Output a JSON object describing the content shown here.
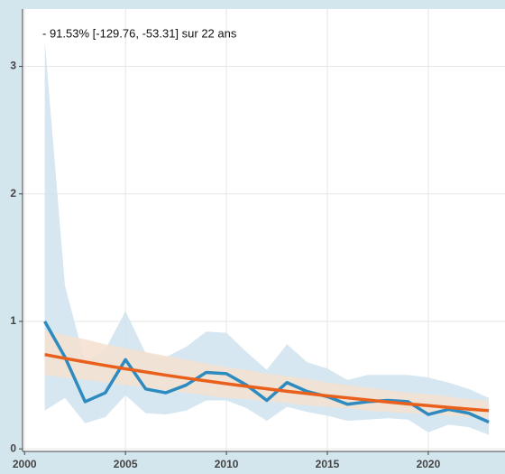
{
  "chart_data": {
    "type": "line",
    "annotation": "- 91.53% [-129.76, -53.31] sur 22 ans",
    "x": [
      2001,
      2002,
      2003,
      2004,
      2005,
      2006,
      2007,
      2008,
      2009,
      2010,
      2011,
      2012,
      2013,
      2014,
      2015,
      2016,
      2017,
      2018,
      2019,
      2020,
      2021,
      2022,
      2023
    ],
    "series": [
      {
        "color": "#2e8bc0",
        "band_color": "#cfe3ef",
        "values": [
          1.0,
          0.72,
          0.37,
          0.44,
          0.7,
          0.47,
          0.44,
          0.5,
          0.6,
          0.59,
          0.5,
          0.38,
          0.52,
          0.45,
          0.41,
          0.35,
          0.37,
          0.38,
          0.37,
          0.27,
          0.31,
          0.28,
          0.21
        ],
        "band_upper": [
          3.2,
          1.28,
          0.68,
          0.78,
          1.08,
          0.75,
          0.72,
          0.8,
          0.92,
          0.91,
          0.76,
          0.62,
          0.82,
          0.68,
          0.63,
          0.54,
          0.58,
          0.58,
          0.58,
          0.56,
          0.52,
          0.47,
          0.4
        ],
        "band_lower": [
          0.3,
          0.4,
          0.2,
          0.25,
          0.42,
          0.28,
          0.27,
          0.3,
          0.38,
          0.38,
          0.32,
          0.22,
          0.33,
          0.29,
          0.26,
          0.22,
          0.23,
          0.24,
          0.23,
          0.13,
          0.19,
          0.17,
          0.11
        ]
      },
      {
        "color": "#e8601c",
        "band_color": "#f5e0cf",
        "values": [
          0.74,
          0.71,
          0.682,
          0.654,
          0.628,
          0.603,
          0.578,
          0.555,
          0.533,
          0.511,
          0.491,
          0.471,
          0.452,
          0.434,
          0.416,
          0.4,
          0.384,
          0.368,
          0.353,
          0.339,
          0.325,
          0.312,
          0.3
        ],
        "band_upper": [
          0.93,
          0.89,
          0.86,
          0.82,
          0.79,
          0.76,
          0.73,
          0.7,
          0.67,
          0.64,
          0.62,
          0.59,
          0.57,
          0.55,
          0.52,
          0.5,
          0.48,
          0.46,
          0.44,
          0.43,
          0.41,
          0.39,
          0.38
        ],
        "band_lower": [
          0.58,
          0.56,
          0.54,
          0.52,
          0.5,
          0.48,
          0.46,
          0.44,
          0.42,
          0.4,
          0.39,
          0.37,
          0.36,
          0.34,
          0.33,
          0.32,
          0.3,
          0.29,
          0.28,
          0.27,
          0.26,
          0.25,
          0.24
        ]
      }
    ],
    "xlim": [
      1999.9,
      2023.8
    ],
    "xticks": [
      2000,
      2005,
      2010,
      2015,
      2020
    ],
    "ylim": [
      -0.02,
      3.45
    ],
    "yticks": [
      0,
      1,
      2,
      3
    ],
    "grid": true
  }
}
